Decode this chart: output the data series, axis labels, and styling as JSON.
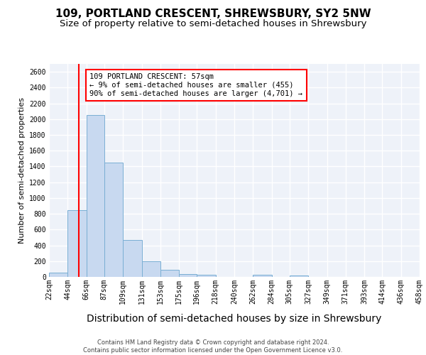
{
  "title": "109, PORTLAND CRESCENT, SHREWSBURY, SY2 5NW",
  "subtitle": "Size of property relative to semi-detached houses in Shrewsbury",
  "xlabel": "Distribution of semi-detached houses by size in Shrewsbury",
  "ylabel": "Number of semi-detached properties",
  "bar_color": "#c8d9f0",
  "bar_edge_color": "#7aafd4",
  "vline_x": 57,
  "vline_color": "red",
  "annotation_text": "109 PORTLAND CRESCENT: 57sqm\n← 9% of semi-detached houses are smaller (455)\n90% of semi-detached houses are larger (4,701) →",
  "footer_line1": "Contains HM Land Registry data © Crown copyright and database right 2024.",
  "footer_line2": "Contains public sector information licensed under the Open Government Licence v3.0.",
  "bin_edges": [
    22,
    44,
    66,
    87,
    109,
    131,
    153,
    175,
    196,
    218,
    240,
    262,
    284,
    305,
    327,
    349,
    371,
    393,
    414,
    436,
    458
  ],
  "bar_heights": [
    50,
    850,
    2050,
    1450,
    470,
    200,
    90,
    40,
    25,
    0,
    0,
    25,
    0,
    20,
    0,
    0,
    0,
    0,
    0,
    0
  ],
  "ylim": [
    0,
    2700
  ],
  "yticks": [
    0,
    200,
    400,
    600,
    800,
    1000,
    1200,
    1400,
    1600,
    1800,
    2000,
    2200,
    2400,
    2600
  ],
  "background_color": "#eef2f9",
  "grid_color": "#ffffff",
  "title_fontsize": 11,
  "subtitle_fontsize": 9.5,
  "tick_label_fontsize": 7,
  "ylabel_fontsize": 8,
  "xlabel_fontsize": 10
}
